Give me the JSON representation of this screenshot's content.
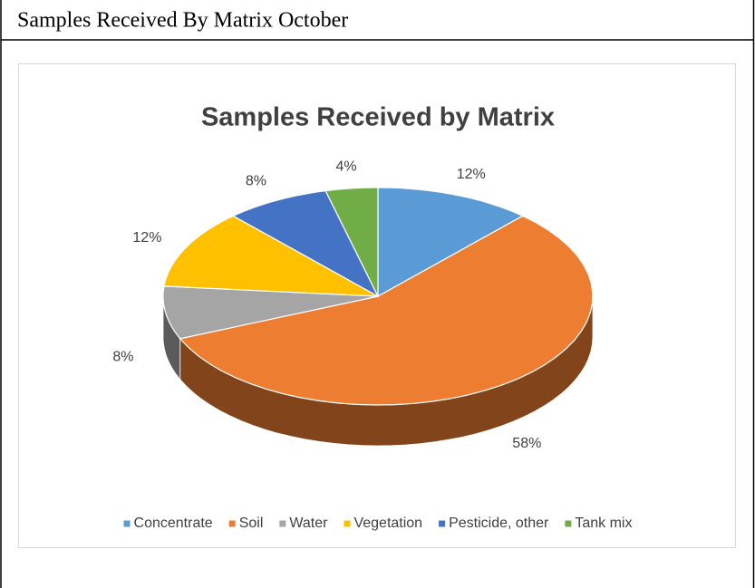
{
  "heading": "Samples Received By Matrix October",
  "chart_data": {
    "type": "pie",
    "title": "Samples Received by Matrix",
    "categories": [
      "Concentrate",
      "Soil",
      "Water",
      "Vegetation",
      "Pesticide, other",
      "Tank mix"
    ],
    "values": [
      12,
      58,
      8,
      12,
      8,
      4
    ],
    "value_labels": [
      "12%",
      "58%",
      "8%",
      "12%",
      "8%",
      "4%"
    ],
    "colors": [
      "#5b9bd5",
      "#ed7d31",
      "#a5a5a5",
      "#ffc000",
      "#4472c4",
      "#70ad47"
    ],
    "legend": "bottom"
  }
}
